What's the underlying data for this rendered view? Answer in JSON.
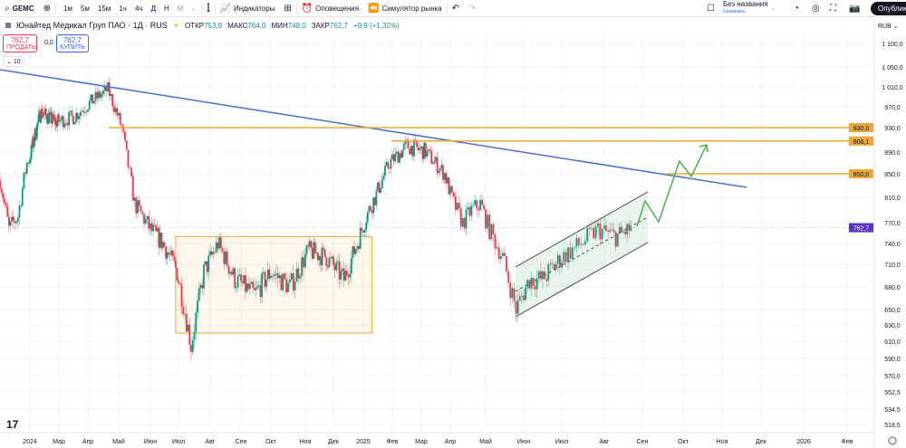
{
  "toolbar": {
    "symbol": "GEMC",
    "timeframes": [
      "1м",
      "5м",
      "15м",
      "1ч",
      "4ч",
      "Д",
      "Н",
      "М"
    ],
    "active_timeframe": "Д",
    "indicators_label": "Индикаторы",
    "alerts_label": "Оповещения",
    "replay_label": "Симулятор рынка",
    "layout_name": "Без названия",
    "save_label": "Сохранить",
    "publish_label": "Опубликовать"
  },
  "legend": {
    "title": "Юнайтед Медикал Груп ПАО · 1Д · RUS",
    "open_label": "ОТКР",
    "open": "753,8",
    "high_label": "МАКС",
    "high": "764,0",
    "low_label": "МИН",
    "low": "748,0",
    "close_label": "ЗАКР",
    "close": "762,7",
    "change": "+9,9 (+1,32%)"
  },
  "trade": {
    "sell_price": "762,7",
    "sell_label": "ПРОДАТЬ",
    "spread": "0,0",
    "buy_price": "762,7",
    "buy_label": "КУПИТЬ"
  },
  "indicators_collapsed": "10",
  "currency": "RUB",
  "colors": {
    "up": "#089981",
    "down": "#f23645",
    "trend": "#4a6fd1",
    "level": "#f0a830",
    "current": "#5b2fc9",
    "forecast": "#4caf50"
  },
  "chart_data": {
    "type": "candlestick",
    "price_ticks": [
      1100,
      1050,
      1010,
      970,
      930,
      890,
      850,
      810,
      770,
      740,
      710,
      680,
      650,
      630,
      610,
      590,
      570,
      552.5,
      534.5,
      518.5
    ],
    "price_tick_labels": [
      "1 100,0",
      "1 050,0",
      "1 010,0",
      "970,0",
      "930,0",
      "890,0",
      "850,0",
      "810,0",
      "770,0",
      "740,0",
      "710,0",
      "680,0",
      "650,0",
      "630,0",
      "610,0",
      "590,0",
      "570,0",
      "552,5",
      "534,5",
      "518,5"
    ],
    "time_labels": [
      "2024",
      "Мар",
      "Апр",
      "Май",
      "Июн",
      "Июл",
      "Авг",
      "Сен",
      "Окт",
      "Ноя",
      "Дек",
      "2025",
      "Фев",
      "Мар",
      "Апр",
      "Май",
      "Июн",
      "Июл",
      "Авг",
      "Сен",
      "Окт",
      "Ноя",
      "Дек",
      "2026",
      "Фев"
    ],
    "close_path_months_since_jan2024": [
      [
        -1.0,
        840
      ],
      [
        -0.7,
        760
      ],
      [
        -0.4,
        780
      ],
      [
        -0.1,
        870
      ],
      [
        0.75,
        960
      ],
      [
        1.8,
        940
      ],
      [
        2.5,
        950
      ],
      [
        3.1,
        980
      ],
      [
        3.65,
        1005
      ],
      [
        4.1,
        930
      ],
      [
        4.5,
        800
      ],
      [
        5.0,
        760
      ],
      [
        5.45,
        740
      ],
      [
        5.95,
        700
      ],
      [
        6.4,
        605
      ],
      [
        6.8,
        700
      ],
      [
        7.25,
        740
      ],
      [
        7.8,
        690
      ],
      [
        8.45,
        670
      ],
      [
        9.0,
        700
      ],
      [
        9.55,
        680
      ],
      [
        10.1,
        730
      ],
      [
        10.75,
        720
      ],
      [
        11.35,
        690
      ],
      [
        11.8,
        740
      ],
      [
        12.1,
        780
      ],
      [
        12.4,
        810
      ],
      [
        12.9,
        870
      ],
      [
        13.5,
        900
      ],
      [
        14.15,
        890
      ],
      [
        14.8,
        850
      ],
      [
        15.1,
        800
      ],
      [
        15.35,
        770
      ],
      [
        15.6,
        790
      ],
      [
        15.85,
        800
      ],
      [
        16.1,
        760
      ],
      [
        16.45,
        720
      ],
      [
        16.8,
        650
      ],
      [
        17.15,
        690
      ],
      [
        17.5,
        690
      ],
      [
        18.0,
        720
      ],
      [
        18.45,
        740
      ],
      [
        18.85,
        760
      ],
      [
        19.3,
        750
      ],
      [
        19.75,
        762.7
      ]
    ],
    "levels": [
      {
        "price": 930,
        "label": "930,0"
      },
      {
        "price": 908.1,
        "label": "908,1"
      },
      {
        "price": 850,
        "label": "850,0"
      }
    ],
    "current_price": {
      "price": 762.7,
      "label": "762,7"
    },
    "range_box": {
      "from_month": 5.9,
      "to_month": 12.3,
      "low": 620,
      "high": 750
    }
  }
}
